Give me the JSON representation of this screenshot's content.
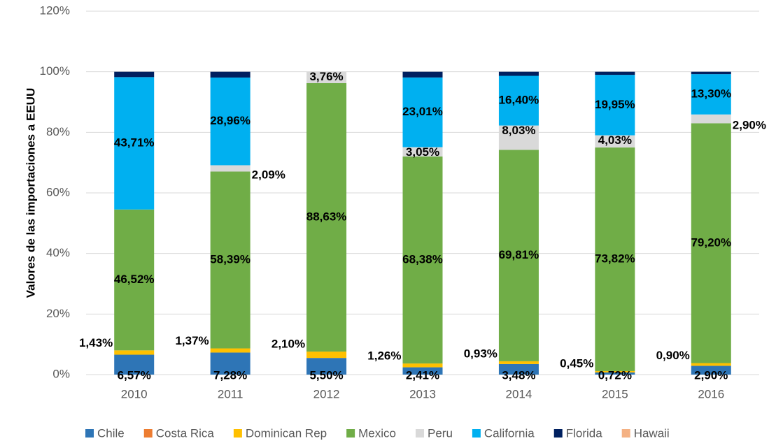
{
  "chart_data": {
    "type": "stacked_bar",
    "y_label": "Valores de las importaciones a EEUU",
    "categories": [
      "2010",
      "2011",
      "2012",
      "2013",
      "2014",
      "2015",
      "2016"
    ],
    "ylim": [
      0,
      120
    ],
    "yticks": [
      {
        "value": 0,
        "label": "0%"
      },
      {
        "value": 20,
        "label": "20%"
      },
      {
        "value": 40,
        "label": "40%"
      },
      {
        "value": 60,
        "label": "60%"
      },
      {
        "value": 80,
        "label": "80%"
      },
      {
        "value": 100,
        "label": "100%"
      },
      {
        "value": 120,
        "label": "120%"
      }
    ],
    "grid": true,
    "legend": "bottom",
    "series": [
      {
        "name": "Chile",
        "color": "#2e75b6",
        "values": [
          6.57,
          7.28,
          5.5,
          2.41,
          3.48,
          0.72,
          2.9
        ],
        "value_labels": [
          "6,57%",
          "7,28%",
          "5,50%",
          "2,41%",
          "3,48%",
          "0,72%",
          "2,90%"
        ]
      },
      {
        "name": "Costa Rica",
        "color": "#ed7d31",
        "values": [
          0,
          0,
          0,
          0,
          0,
          0,
          0
        ]
      },
      {
        "name": "Dominican Rep",
        "color": "#ffc000",
        "values": [
          1.43,
          1.37,
          2.1,
          1.26,
          0.93,
          0.45,
          0.9
        ],
        "value_labels": [
          "1,43%",
          "1,37%",
          "2,10%",
          "1,26%",
          "0,93%",
          "0,45%",
          "0,90%"
        ]
      },
      {
        "name": "Mexico",
        "color": "#70ad47",
        "values": [
          46.52,
          58.39,
          88.63,
          68.38,
          69.81,
          73.82,
          79.2
        ],
        "value_labels": [
          "46,52%",
          "58,39%",
          "88,63%",
          "68,38%",
          "69,81%",
          "73,82%",
          "79,20%"
        ]
      },
      {
        "name": "Peru",
        "color": "#d9d9d9",
        "values": [
          0,
          2.09,
          3.76,
          3.05,
          8.03,
          4.03,
          2.9
        ],
        "value_labels": [
          null,
          "2,09%",
          "3,76%",
          "3,05%",
          "8,03%",
          "4,03%",
          "2,90%"
        ]
      },
      {
        "name": "California",
        "color": "#00b0f0",
        "values": [
          43.71,
          28.96,
          0,
          23.01,
          16.4,
          19.95,
          13.3
        ],
        "value_labels": [
          "43,71%",
          "28,96%",
          null,
          "23,01%",
          "16,40%",
          "19,95%",
          "13,30%"
        ]
      },
      {
        "name": "Florida",
        "color": "#002060",
        "values": [
          1.77,
          1.91,
          0,
          1.89,
          1.35,
          1.03,
          0.8
        ]
      },
      {
        "name": "Hawaii",
        "color": "#f4b183",
        "values": [
          0,
          0,
          0,
          0,
          0,
          0,
          0
        ]
      }
    ]
  }
}
